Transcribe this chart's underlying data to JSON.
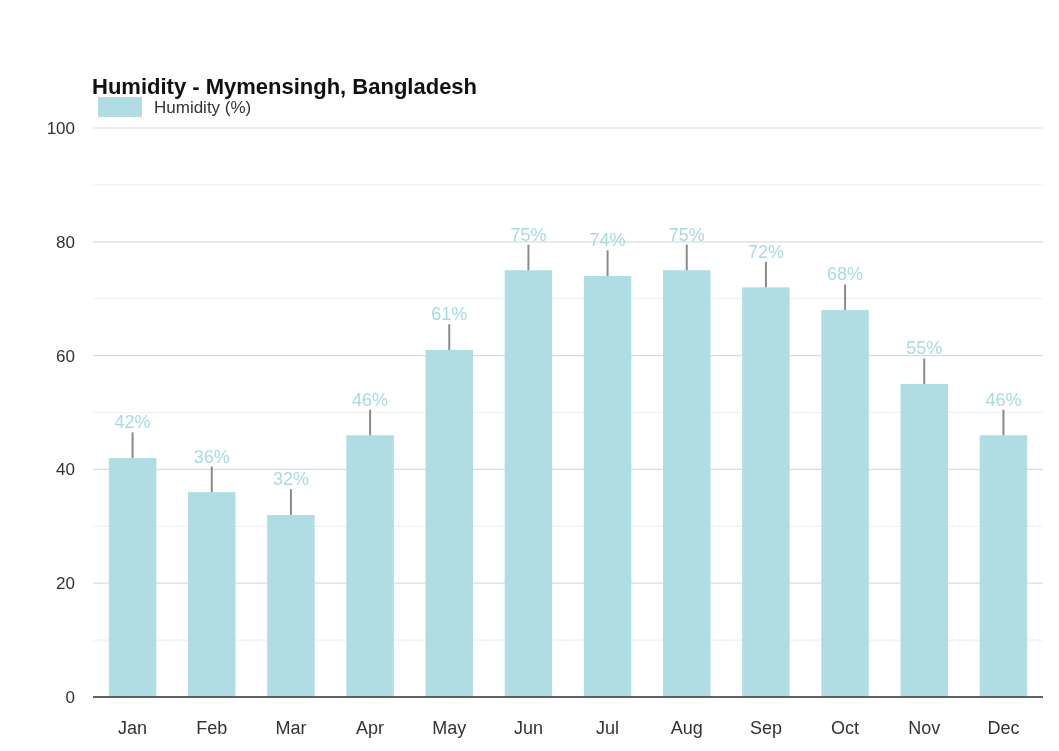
{
  "chart_data": {
    "type": "bar",
    "title": "Humidity - Mymensingh, Bangladesh",
    "categories": [
      "Jan",
      "Feb",
      "Mar",
      "Apr",
      "May",
      "Jun",
      "Jul",
      "Aug",
      "Sep",
      "Oct",
      "Nov",
      "Dec"
    ],
    "series": [
      {
        "name": "Humidity (%)",
        "color": "#b0dde4",
        "values": [
          42,
          36,
          32,
          46,
          61,
          75,
          74,
          75,
          72,
          68,
          55,
          46
        ],
        "errors": [
          [
            42,
            46.5
          ],
          [
            36,
            40.5
          ],
          [
            32,
            36.5
          ],
          [
            46,
            50.5
          ],
          [
            61,
            65.5
          ],
          [
            75,
            79.5
          ],
          [
            74,
            78.5
          ],
          [
            75,
            79.5
          ],
          [
            72,
            76.5
          ],
          [
            68,
            72.5
          ],
          [
            55,
            59.5
          ],
          [
            46,
            50.5
          ]
        ],
        "value_labels": [
          "42%",
          "36%",
          "32%",
          "46%",
          "61%",
          "75%",
          "74%",
          "75%",
          "72%",
          "68%",
          "55%",
          "46%"
        ]
      }
    ],
    "ylim": [
      0,
      100
    ],
    "yticks": [
      0,
      {
        "value": 10,
        "label": null
      },
      20,
      {
        "value": 30,
        "label": null
      },
      40,
      {
        "value": 50,
        "label": null
      },
      60,
      {
        "value": 70,
        "label": null
      },
      80,
      {
        "value": 90,
        "label": null
      },
      100
    ],
    "grid": "y",
    "legend": "top left"
  }
}
